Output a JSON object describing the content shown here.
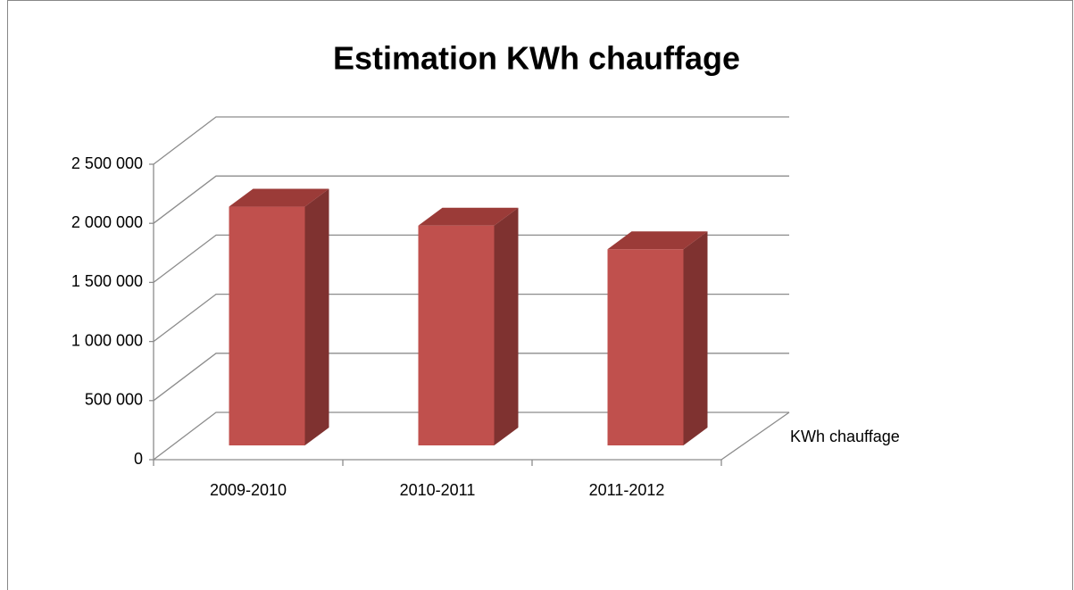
{
  "chart_data": {
    "type": "bar3d",
    "title": "Estimation KWh chauffage",
    "categories": [
      "2009-2010",
      "2010-2011",
      "2011-2012"
    ],
    "series": [
      {
        "name": "KWh chauffage",
        "color": "#c0504d",
        "values": [
          2020000,
          1860000,
          1660000
        ]
      }
    ],
    "ylim": [
      0,
      2500000
    ],
    "yticks": [
      0,
      {
        "value": 500000,
        "label": "500 000"
      },
      {
        "value": 1000000,
        "label": "1 000 000"
      },
      {
        "value": 1500000,
        "label": "1 500 000"
      },
      {
        "value": 2000000,
        "label": "2 000 000"
      },
      {
        "value": 2500000,
        "label": "2 500 000"
      }
    ],
    "grid": true,
    "legend": "right"
  }
}
